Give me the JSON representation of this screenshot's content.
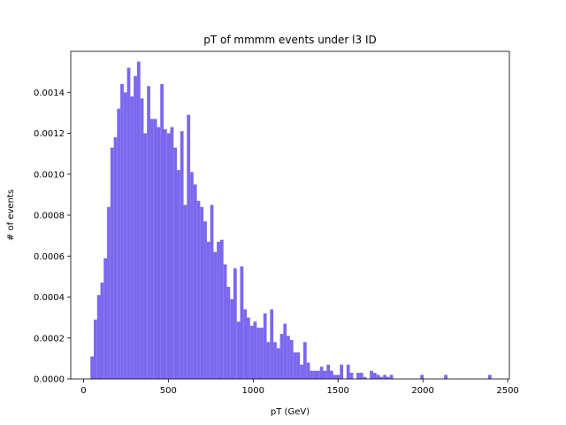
{
  "chart_data": {
    "type": "bar",
    "title": "pT of mmmm events under l3 ID",
    "xlabel": "pT (GeV)",
    "ylabel": "# of events",
    "xlim": [
      -75,
      2510
    ],
    "ylim": [
      0,
      0.0016
    ],
    "xticks": [
      0,
      500,
      1000,
      1500,
      2000,
      2500
    ],
    "yticks": [
      0.0,
      0.0002,
      0.0004,
      0.0006,
      0.0008,
      0.001,
      0.0012,
      0.0014
    ],
    "ytick_labels": [
      "0.0000",
      "0.0002",
      "0.0004",
      "0.0006",
      "0.0008",
      "0.0010",
      "0.0012",
      "0.0014"
    ],
    "bin_start": 41,
    "bin_width": 19.6,
    "values": [
      0.00011,
      0.00029,
      0.00041,
      0.00047,
      0.00059,
      0.00084,
      0.00113,
      0.00118,
      0.00132,
      0.00144,
      0.0014,
      0.00152,
      0.00138,
      0.00148,
      0.00155,
      0.00137,
      0.0012,
      0.00143,
      0.00127,
      0.00127,
      0.00123,
      0.00144,
      0.00122,
      0.0012,
      0.00123,
      0.00113,
      0.00102,
      0.00121,
      0.00085,
      0.00129,
      0.00101,
      0.00095,
      0.00087,
      0.00084,
      0.00077,
      0.00067,
      0.00085,
      0.00062,
      0.00067,
      0.00068,
      0.00056,
      0.00045,
      0.00039,
      0.00054,
      0.00028,
      0.00055,
      0.00034,
      0.0003,
      0.00026,
      0.00028,
      0.00025,
      0.00025,
      0.00032,
      0.00018,
      0.00034,
      0.00018,
      0.00015,
      0.00022,
      0.00027,
      0.00021,
      0.00019,
      0.00013,
      0.00013,
      7e-05,
      0.00018,
      8e-05,
      4e-05,
      4e-05,
      4e-05,
      6e-05,
      4e-05,
      7e-05,
      4e-05,
      2e-05,
      2e-05,
      7e-05,
      0.0,
      7e-05,
      3e-05,
      0.0,
      3e-05,
      3e-05,
      1e-05,
      0.0,
      4e-05,
      3e-05,
      2e-05,
      1e-05,
      2e-05,
      1e-05,
      2e-05,
      0.0,
      0.0,
      0.0,
      0.0,
      0.0,
      0.0,
      0.0,
      0.0,
      0.0,
      0.0,
      0.0,
      0.0,
      0.0,
      0.0,
      0.0,
      0.0,
      0.0,
      0.0,
      0.0,
      0.0,
      0.0,
      0.0,
      0.0,
      0.0,
      0.0,
      0.0,
      0.0,
      0.0,
      0.0,
      0.0,
      0.0,
      0.0,
      0.0,
      0.0,
      0.0,
      0.0,
      0.0,
      0.0,
      0.0,
      0.0,
      0.0,
      0.0,
      0.0,
      0.0,
      0.0,
      0.0,
      0.0,
      0.0,
      0.0
    ],
    "outlier_bins": [
      {
        "x": 1985,
        "value": 2e-05
      },
      {
        "x": 2125,
        "value": 2e-05
      },
      {
        "x": 2385,
        "value": 2e-05
      }
    ],
    "bar_color": "#7b68ee",
    "grid": false,
    "legend": "none"
  }
}
